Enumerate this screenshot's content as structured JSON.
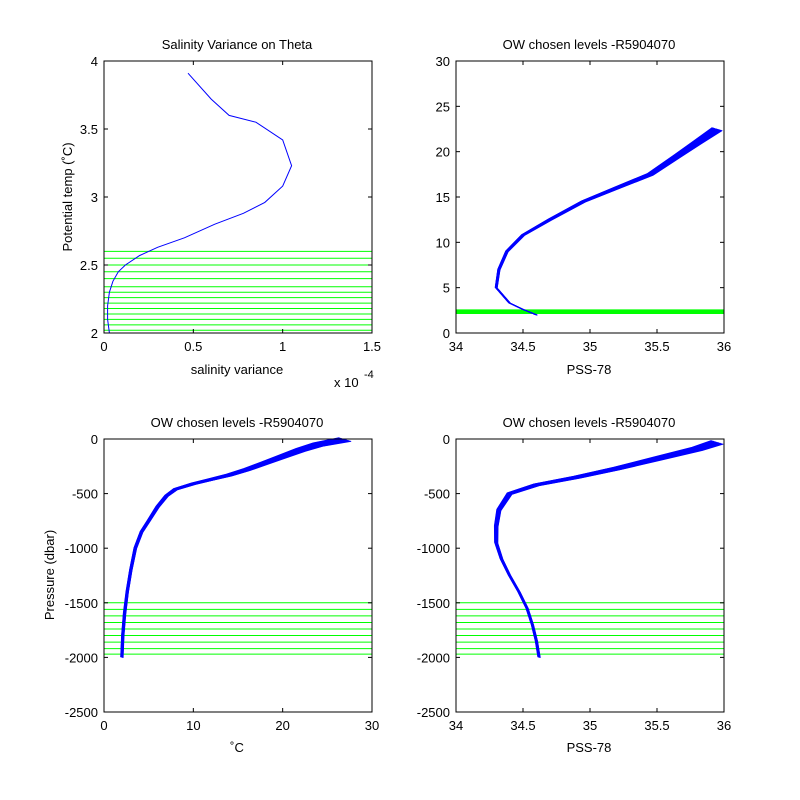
{
  "figure": {
    "background": "#ffffff",
    "curve_color": "#0000ff",
    "level_color": "#00ff00"
  },
  "chart_data": [
    {
      "type": "line",
      "title": "Salinity Variance on Theta",
      "xlabel": "salinity variance",
      "ylabel": "Potential temp (˚C)",
      "x_exponent_label": "x 10",
      "x_exponent": "-4",
      "xlim": [
        0,
        1.5
      ],
      "ylim": [
        2,
        4
      ],
      "xticks": [
        "0",
        "0.5",
        "1",
        "1.5"
      ],
      "yticks": [
        "2",
        "2.5",
        "3",
        "3.5",
        "4"
      ],
      "series": [
        {
          "x": [
            0.03,
            0.02,
            0.02,
            0.03,
            0.05,
            0.08,
            0.12,
            0.2,
            0.3,
            0.45,
            0.62,
            0.78,
            0.9,
            1.0,
            1.05,
            1.0,
            0.85,
            0.7,
            0.6,
            0.47
          ],
          "y": [
            2.0,
            2.1,
            2.2,
            2.3,
            2.38,
            2.45,
            2.5,
            2.57,
            2.63,
            2.7,
            2.8,
            2.88,
            2.96,
            3.08,
            3.23,
            3.42,
            3.55,
            3.6,
            3.72,
            3.91
          ]
        }
      ],
      "chosen_levels": [
        2.02,
        2.06,
        2.1,
        2.14,
        2.18,
        2.22,
        2.26,
        2.3,
        2.34,
        2.4,
        2.45,
        2.5,
        2.55,
        2.6
      ]
    },
    {
      "type": "line",
      "title": "OW chosen levels -R5904070",
      "xlabel": "PSS-78",
      "ylabel": "",
      "xlim": [
        34,
        36
      ],
      "ylim": [
        0,
        30
      ],
      "xticks": [
        "34",
        "34.5",
        "35",
        "35.5",
        "36"
      ],
      "yticks": [
        "0",
        "5",
        "10",
        "15",
        "20",
        "25",
        "30"
      ],
      "series": [
        {
          "x": [
            34.6,
            34.5,
            34.4,
            34.3,
            34.32,
            34.38,
            34.5,
            34.7,
            34.95,
            35.2,
            35.45,
            35.65,
            35.8,
            35.95
          ],
          "y": [
            2.0,
            2.6,
            3.3,
            5.0,
            7.0,
            9.0,
            10.8,
            12.5,
            14.5,
            16.0,
            17.5,
            19.5,
            21.0,
            22.5
          ]
        }
      ],
      "chosen_levels": [
        2.2,
        2.3,
        2.4,
        2.5
      ]
    },
    {
      "type": "line",
      "title": "OW chosen levels -R5904070",
      "xlabel": "˚C",
      "ylabel": "Pressure (dbar)",
      "xlim": [
        0,
        30
      ],
      "ylim": [
        -2500,
        0
      ],
      "xticks": [
        "0",
        "10",
        "20",
        "30"
      ],
      "yticks": [
        "-2500",
        "-2000",
        "-1500",
        "-1000",
        "-500",
        "0"
      ],
      "series": [
        {
          "x": [
            2.0,
            2.1,
            2.3,
            2.6,
            3.0,
            3.5,
            4.2,
            5.0,
            6.0,
            7.0,
            8.0,
            10.0,
            12.0,
            14.0,
            16.0,
            18.0,
            20.0,
            22.0,
            24.0,
            27.0
          ],
          "y": [
            -2000,
            -1800,
            -1600,
            -1400,
            -1200,
            -1000,
            -850,
            -750,
            -620,
            -520,
            -460,
            -410,
            -370,
            -330,
            -280,
            -220,
            -160,
            -100,
            -50,
            -5
          ]
        }
      ],
      "chosen_levels": [
        -1500,
        -1560,
        -1620,
        -1680,
        -1740,
        -1800,
        -1860,
        -1920,
        -1970
      ]
    },
    {
      "type": "line",
      "title": "OW chosen levels -R5904070",
      "xlabel": "PSS-78",
      "ylabel": "",
      "xlim": [
        34,
        36
      ],
      "ylim": [
        -2500,
        0
      ],
      "xticks": [
        "34",
        "34.5",
        "35",
        "35.5",
        "36"
      ],
      "yticks": [
        "-2500",
        "-2000",
        "-1500",
        "-1000",
        "-500",
        "0"
      ],
      "series": [
        {
          "x": [
            34.62,
            34.6,
            34.57,
            34.53,
            34.47,
            34.4,
            34.34,
            34.3,
            34.3,
            34.32,
            34.4,
            34.6,
            34.9,
            35.2,
            35.5,
            35.8,
            35.95
          ],
          "y": [
            -2000,
            -1850,
            -1700,
            -1550,
            -1400,
            -1250,
            -1100,
            -950,
            -800,
            -650,
            -500,
            -420,
            -350,
            -270,
            -180,
            -90,
            -30
          ]
        }
      ],
      "chosen_levels": [
        -1500,
        -1560,
        -1620,
        -1680,
        -1740,
        -1800,
        -1860,
        -1920,
        -1970
      ]
    }
  ]
}
